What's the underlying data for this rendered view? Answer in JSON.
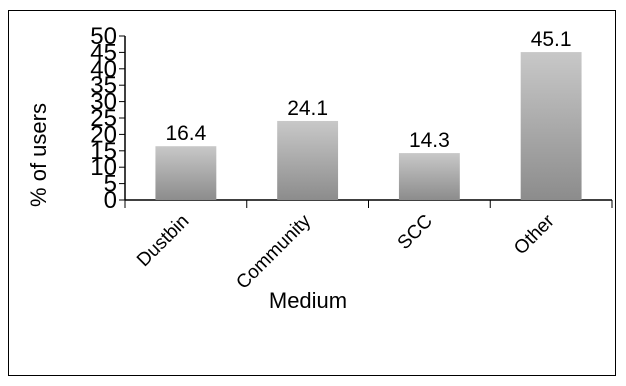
{
  "chart_data": {
    "type": "bar",
    "title": "",
    "xlabel": "Medium",
    "ylabel": "% of users",
    "ylim": [
      0,
      50
    ],
    "yticks": [
      0,
      5,
      10,
      15,
      20,
      25,
      30,
      35,
      40,
      45,
      50
    ],
    "categories": [
      "Dustbin",
      "Community",
      "SCC",
      "Other"
    ],
    "values": [
      16.4,
      24.1,
      14.3,
      45.1
    ],
    "data_labels": [
      "16.4",
      "24.1",
      "14.3",
      "45.1"
    ],
    "bar_gradient": [
      "#c8c8c8",
      "#8c8c8c"
    ],
    "grid": false,
    "legend": "none"
  }
}
